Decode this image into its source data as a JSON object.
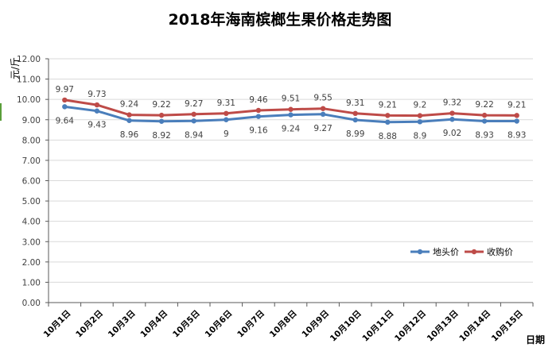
{
  "chart_data": {
    "type": "line",
    "title": "2018年海南槟榔生果价格走势图",
    "ylabel": "元/斤",
    "xlabel": "日期",
    "ylim": [
      0,
      12
    ],
    "y_ticks": [
      "0.00",
      "1.00",
      "2.00",
      "3.00",
      "4.00",
      "5.00",
      "6.00",
      "7.00",
      "8.00",
      "9.00",
      "10.00",
      "11.00",
      "12.00"
    ],
    "categories": [
      "10月1日",
      "10月2日",
      "10月3日",
      "10月4日",
      "10月5日",
      "10月6日",
      "10月7日",
      "10月8日",
      "10月9日",
      "10月10日",
      "10月11日",
      "10月12日",
      "10月13日",
      "10月14日",
      "10月15日"
    ],
    "grid": true,
    "legend_position": "bottom-right",
    "series": [
      {
        "name": "地头价",
        "color": "#4a7ebb",
        "values": [
          9.64,
          9.43,
          8.96,
          8.92,
          8.94,
          9,
          9.16,
          9.24,
          9.27,
          8.99,
          8.88,
          8.9,
          9.02,
          8.93,
          8.93
        ],
        "labels": [
          "9.64",
          "9.43",
          "8.96",
          "8.92",
          "8.94",
          "9",
          "9.16",
          "9.24",
          "9.27",
          "8.99",
          "8.88",
          "8.9",
          "9.02",
          "8.93",
          "8.93"
        ]
      },
      {
        "name": "收购价",
        "color": "#be4b48",
        "values": [
          9.97,
          9.73,
          9.24,
          9.22,
          9.27,
          9.31,
          9.46,
          9.51,
          9.55,
          9.31,
          9.21,
          9.2,
          9.32,
          9.22,
          9.21
        ],
        "labels": [
          "9.97",
          "9.73",
          "9.24",
          "9.22",
          "9.27",
          "9.31",
          "9.46",
          "9.51",
          "9.55",
          "9.31",
          "9.21",
          "9.2",
          "9.32",
          "9.22",
          "9.21"
        ]
      }
    ]
  }
}
